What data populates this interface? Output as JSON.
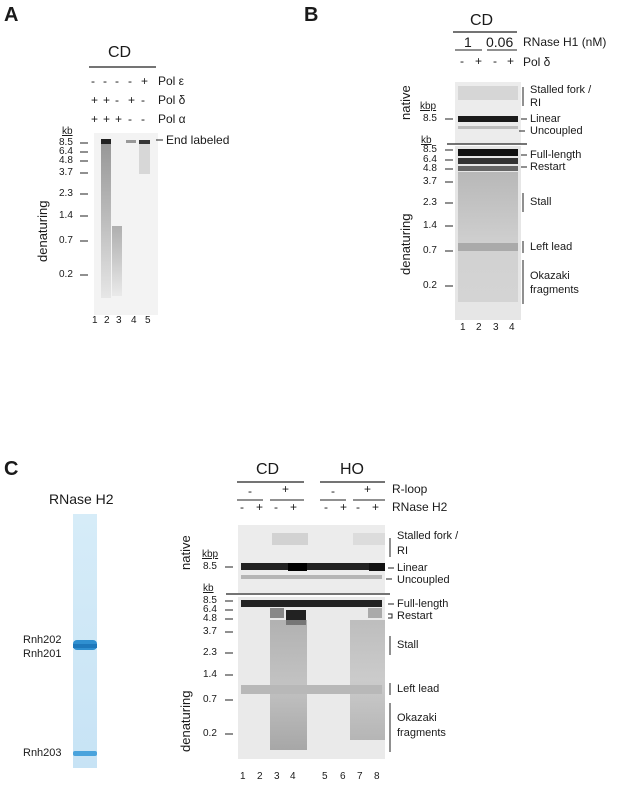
{
  "panelA": {
    "letter": "A",
    "condition": "CD",
    "rows": [
      {
        "label": "Pol ε",
        "signs": [
          "-",
          "-",
          "-",
          "-",
          "+"
        ]
      },
      {
        "label": "Pol δ",
        "signs": [
          "+",
          "+",
          "-",
          "+",
          "-"
        ]
      },
      {
        "label": "Pol α",
        "signs": [
          "+",
          "+",
          "+",
          "-",
          "-"
        ]
      }
    ],
    "gel_label": "denaturing",
    "kb_unit": "kb",
    "markers": [
      "8.5",
      "6.4",
      "4.8",
      "3.7",
      "2.3",
      "1.4",
      "0.7",
      "0.2"
    ],
    "band_label": "End labeled",
    "lanes": [
      "1",
      "2",
      "3",
      "4",
      "5"
    ]
  },
  "panelB": {
    "letter": "B",
    "condition": "CD",
    "conc_values": [
      "1",
      "0.06"
    ],
    "conc_label": "RNase H1 (nM)",
    "pol_signs": [
      "-",
      "+",
      "-",
      "+"
    ],
    "pol_label": "Pol δ",
    "native_label": "native",
    "denat_label": "denaturing",
    "kbp_unit": "kbp",
    "native_marker": "8.5",
    "kb_unit": "kb",
    "markers": [
      "8.5",
      "6.4",
      "4.8",
      "3.7",
      "2.3",
      "1.4",
      "0.7",
      "0.2"
    ],
    "native_bands": [
      "Stalled fork /",
      "RI",
      "Linear",
      "Uncoupled"
    ],
    "denat_bands": [
      "Full-length",
      "Restart",
      "Stall",
      "Left lead",
      "Okazaki",
      "fragments"
    ],
    "lanes": [
      "1",
      "2",
      "3",
      "4"
    ]
  },
  "panelC": {
    "letter": "C",
    "sds_title": "RNase H2",
    "sds_bands": [
      "Rnh202",
      "Rnh201",
      "Rnh203"
    ],
    "conditions": [
      "CD",
      "HO"
    ],
    "rloop_signs": [
      "-",
      "+",
      "-",
      "+"
    ],
    "rloop_label": "R-loop",
    "rnase_signs": [
      "-",
      "+",
      "-",
      "+",
      "-",
      "+",
      "-",
      "+"
    ],
    "rnase_label": "RNase H2",
    "native_label": "native",
    "denat_label": "denaturing",
    "kbp_unit": "kbp",
    "native_marker": "8.5",
    "kb_unit": "kb",
    "markers": [
      "8.5",
      "6.4",
      "4.8",
      "3.7",
      "2.3",
      "1.4",
      "0.7",
      "0.2"
    ],
    "native_bands": [
      "Stalled fork /",
      "RI",
      "Linear",
      "Uncoupled"
    ],
    "denat_bands": [
      "Full-length",
      "Restart",
      "Stall",
      "Left lead",
      "Okazaki",
      "fragments"
    ],
    "lanes": [
      "1",
      "2",
      "3",
      "4",
      "5",
      "6",
      "7",
      "8"
    ]
  }
}
